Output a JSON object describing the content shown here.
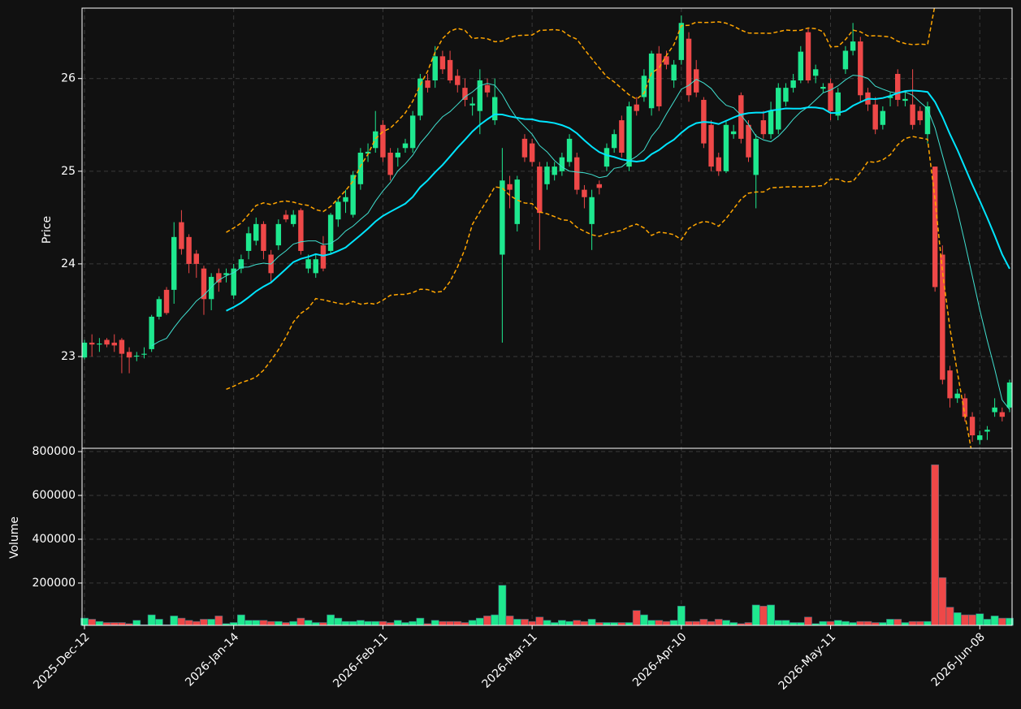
{
  "chart_data": {
    "type": "candlestick",
    "ylabel": "Price",
    "volume_ylabel": "Volume",
    "categories": [
      "2025-Dec-12",
      null,
      null,
      null,
      null,
      null,
      null,
      null,
      null,
      null,
      null,
      null,
      null,
      null,
      null,
      null,
      null,
      null,
      null,
      null,
      "2026-Jan-14",
      null,
      null,
      null,
      null,
      null,
      null,
      null,
      null,
      null,
      null,
      null,
      null,
      null,
      null,
      null,
      null,
      null,
      null,
      null,
      "2026-Feb-11",
      null,
      null,
      null,
      null,
      null,
      null,
      null,
      null,
      null,
      null,
      null,
      null,
      null,
      null,
      null,
      null,
      null,
      null,
      null,
      "2026-Mar-11",
      null,
      null,
      null,
      null,
      null,
      null,
      null,
      null,
      null,
      null,
      null,
      null,
      null,
      null,
      null,
      null,
      null,
      null,
      null,
      "2026-Apr-10",
      null,
      null,
      null,
      null,
      null,
      null,
      null,
      null,
      null,
      null,
      null,
      null,
      null,
      null,
      null,
      null,
      null,
      null,
      null,
      "2026-May-11",
      null,
      null,
      null,
      null,
      null,
      null,
      null,
      null,
      null,
      null,
      null,
      null,
      null,
      null,
      null,
      null,
      null,
      null,
      null,
      "2026-Jun-08",
      null,
      null,
      null,
      null
    ],
    "ohlc": [
      [
        22.99,
        23.18,
        22.97,
        23.15
      ],
      [
        23.15,
        23.24,
        23.0,
        23.13
      ],
      [
        23.13,
        23.2,
        23.05,
        23.14
      ],
      [
        23.18,
        23.2,
        23.1,
        23.13
      ],
      [
        23.15,
        23.24,
        23.05,
        23.12
      ],
      [
        23.18,
        23.2,
        22.82,
        23.03
      ],
      [
        23.05,
        23.1,
        22.82,
        22.99
      ],
      [
        23.0,
        23.05,
        22.95,
        23.01
      ],
      [
        23.02,
        23.1,
        22.98,
        23.03
      ],
      [
        23.08,
        23.45,
        23.05,
        23.43
      ],
      [
        23.43,
        23.65,
        23.4,
        23.62
      ],
      [
        23.72,
        23.75,
        23.45,
        23.47
      ],
      [
        23.72,
        24.45,
        23.57,
        24.29
      ],
      [
        24.45,
        24.58,
        24.1,
        24.16
      ],
      [
        24.29,
        24.32,
        23.9,
        24.0
      ],
      [
        24.11,
        24.15,
        23.85,
        24.0
      ],
      [
        23.95,
        23.98,
        23.45,
        23.62
      ],
      [
        23.62,
        23.9,
        23.5,
        23.86
      ],
      [
        23.9,
        23.95,
        23.7,
        23.8
      ],
      [
        23.88,
        23.95,
        23.8,
        23.9
      ],
      [
        23.66,
        24.0,
        23.62,
        23.95
      ],
      [
        23.95,
        24.1,
        23.9,
        24.05
      ],
      [
        24.14,
        24.4,
        24.05,
        24.33
      ],
      [
        24.25,
        24.5,
        24.2,
        24.43
      ],
      [
        24.43,
        24.46,
        24.05,
        24.14
      ],
      [
        24.1,
        24.15,
        23.8,
        23.9
      ],
      [
        24.2,
        24.48,
        24.15,
        24.43
      ],
      [
        24.53,
        24.58,
        24.45,
        24.48
      ],
      [
        24.43,
        24.58,
        24.4,
        24.53
      ],
      [
        24.58,
        24.6,
        24.1,
        24.14
      ],
      [
        23.95,
        24.1,
        23.9,
        24.05
      ],
      [
        23.9,
        24.1,
        23.85,
        24.05
      ],
      [
        24.2,
        24.3,
        23.92,
        23.95
      ],
      [
        24.14,
        24.55,
        24.1,
        24.53
      ],
      [
        24.48,
        24.7,
        24.4,
        24.67
      ],
      [
        24.67,
        24.8,
        24.55,
        24.72
      ],
      [
        24.53,
        25.0,
        24.5,
        24.96
      ],
      [
        24.86,
        25.25,
        24.8,
        25.2
      ],
      [
        25.19,
        25.3,
        25.1,
        25.21
      ],
      [
        25.25,
        25.65,
        25.2,
        25.43
      ],
      [
        25.5,
        25.55,
        25.1,
        25.15
      ],
      [
        25.2,
        25.25,
        24.9,
        24.96
      ],
      [
        25.15,
        25.25,
        25.05,
        25.2
      ],
      [
        25.25,
        25.35,
        25.2,
        25.3
      ],
      [
        25.25,
        25.65,
        25.2,
        25.6
      ],
      [
        25.6,
        26.05,
        25.55,
        26.0
      ],
      [
        25.98,
        26.05,
        25.85,
        25.9
      ],
      [
        25.98,
        26.35,
        25.9,
        26.24
      ],
      [
        26.24,
        26.3,
        26.05,
        26.1
      ],
      [
        26.2,
        26.3,
        25.95,
        25.98
      ],
      [
        26.03,
        26.1,
        25.85,
        25.93
      ],
      [
        25.9,
        26.0,
        25.7,
        25.77
      ],
      [
        25.71,
        25.8,
        25.6,
        25.73
      ],
      [
        25.65,
        26.1,
        25.4,
        25.98
      ],
      [
        25.93,
        26.0,
        25.8,
        25.85
      ],
      [
        25.55,
        26.0,
        25.5,
        25.8
      ],
      [
        24.1,
        25.25,
        23.15,
        24.9
      ],
      [
        24.86,
        24.95,
        24.6,
        24.8
      ],
      [
        24.43,
        24.95,
        24.35,
        24.91
      ],
      [
        25.35,
        25.4,
        25.1,
        25.15
      ],
      [
        25.3,
        25.35,
        25.05,
        25.1
      ],
      [
        25.05,
        25.1,
        24.15,
        24.55
      ],
      [
        24.86,
        25.1,
        24.8,
        25.05
      ],
      [
        24.96,
        25.1,
        24.9,
        25.05
      ],
      [
        25.0,
        25.2,
        24.95,
        25.15
      ],
      [
        25.1,
        25.4,
        25.05,
        25.35
      ],
      [
        25.15,
        25.2,
        24.75,
        24.8
      ],
      [
        24.8,
        24.85,
        24.6,
        24.72
      ],
      [
        24.43,
        24.8,
        24.15,
        24.72
      ],
      [
        24.86,
        24.9,
        24.75,
        24.82
      ],
      [
        25.05,
        25.3,
        25.0,
        25.25
      ],
      [
        25.25,
        25.45,
        25.2,
        25.4
      ],
      [
        25.55,
        25.6,
        25.15,
        25.2
      ],
      [
        25.05,
        25.75,
        25.0,
        25.7
      ],
      [
        25.72,
        25.8,
        25.6,
        25.65
      ],
      [
        25.8,
        26.1,
        25.75,
        26.03
      ],
      [
        25.68,
        26.3,
        25.6,
        26.27
      ],
      [
        26.27,
        26.35,
        25.65,
        25.7
      ],
      [
        26.24,
        26.3,
        26.1,
        26.15
      ],
      [
        25.98,
        26.2,
        25.9,
        26.15
      ],
      [
        26.2,
        26.68,
        26.15,
        26.6
      ],
      [
        26.43,
        26.5,
        25.75,
        25.82
      ],
      [
        26.1,
        26.2,
        25.8,
        25.85
      ],
      [
        25.77,
        25.8,
        25.25,
        25.3
      ],
      [
        25.5,
        25.55,
        25.0,
        25.05
      ],
      [
        25.15,
        25.2,
        24.95,
        25.0
      ],
      [
        25.0,
        25.55,
        24.98,
        25.5
      ],
      [
        25.4,
        25.5,
        25.35,
        25.43
      ],
      [
        25.82,
        25.85,
        25.3,
        25.35
      ],
      [
        25.5,
        25.55,
        25.1,
        25.15
      ],
      [
        24.96,
        25.4,
        24.6,
        25.35
      ],
      [
        25.55,
        25.65,
        25.35,
        25.4
      ],
      [
        25.4,
        25.75,
        25.35,
        25.65
      ],
      [
        25.45,
        25.95,
        25.4,
        25.9
      ],
      [
        25.75,
        25.95,
        25.7,
        25.9
      ],
      [
        25.9,
        26.05,
        25.85,
        25.98
      ],
      [
        25.98,
        26.35,
        25.95,
        26.29
      ],
      [
        26.5,
        26.55,
        25.95,
        25.98
      ],
      [
        26.03,
        26.15,
        25.95,
        26.1
      ],
      [
        25.89,
        25.95,
        25.85,
        25.91
      ],
      [
        25.95,
        26.0,
        25.55,
        25.65
      ],
      [
        25.6,
        25.9,
        25.55,
        25.85
      ],
      [
        26.1,
        26.35,
        26.05,
        26.3
      ],
      [
        26.3,
        26.6,
        26.25,
        26.4
      ],
      [
        26.4,
        26.45,
        25.75,
        25.82
      ],
      [
        25.85,
        25.9,
        25.65,
        25.72
      ],
      [
        25.72,
        25.8,
        25.4,
        25.45
      ],
      [
        25.5,
        25.7,
        25.45,
        25.65
      ],
      [
        25.79,
        25.85,
        25.7,
        25.81
      ],
      [
        26.05,
        26.1,
        25.7,
        25.77
      ],
      [
        25.76,
        25.85,
        25.7,
        25.78
      ],
      [
        25.72,
        26.1,
        25.45,
        25.5
      ],
      [
        25.65,
        25.7,
        25.5,
        25.55
      ],
      [
        25.4,
        25.75,
        25.3,
        25.7
      ],
      [
        25.05,
        25.05,
        23.7,
        23.75
      ],
      [
        24.1,
        24.2,
        22.7,
        22.75
      ],
      [
        22.85,
        22.9,
        22.45,
        22.55
      ],
      [
        22.55,
        22.65,
        22.5,
        22.6
      ],
      [
        22.55,
        22.6,
        22.3,
        22.35
      ],
      [
        22.35,
        22.4,
        22.08,
        22.15
      ],
      [
        22.1,
        22.2,
        22.05,
        22.15
      ],
      [
        22.19,
        22.25,
        22.1,
        22.21
      ],
      [
        22.4,
        22.55,
        22.35,
        22.45
      ],
      [
        22.4,
        22.45,
        22.3,
        22.35
      ],
      [
        22.45,
        22.75,
        22.4,
        22.72
      ]
    ],
    "volume": [
      40000,
      35000,
      25000,
      20000,
      20000,
      20000,
      15000,
      30000,
      10000,
      55000,
      35000,
      10000,
      50000,
      40000,
      30000,
      25000,
      35000,
      35000,
      50000,
      15000,
      20000,
      55000,
      30000,
      30000,
      30000,
      25000,
      25000,
      20000,
      25000,
      40000,
      30000,
      20000,
      20000,
      55000,
      40000,
      25000,
      25000,
      30000,
      25000,
      25000,
      25000,
      20000,
      30000,
      20000,
      25000,
      40000,
      15000,
      30000,
      25000,
      25000,
      25000,
      20000,
      30000,
      40000,
      50000,
      55000,
      190000,
      50000,
      35000,
      35000,
      25000,
      45000,
      30000,
      20000,
      30000,
      25000,
      30000,
      25000,
      35000,
      20000,
      20000,
      20000,
      20000,
      20000,
      75000,
      55000,
      30000,
      30000,
      25000,
      30000,
      95000,
      25000,
      25000,
      35000,
      25000,
      35000,
      30000,
      20000,
      15000,
      20000,
      100000,
      95000,
      100000,
      30000,
      30000,
      20000,
      20000,
      45000,
      15000,
      25000,
      25000,
      30000,
      25000,
      20000,
      25000,
      25000,
      20000,
      20000,
      35000,
      35000,
      20000,
      25000,
      25000,
      25000,
      740000,
      225000,
      90000,
      65000,
      55000,
      55000,
      60000,
      35000,
      50000,
      40000,
      40000
    ],
    "ylim": [
      22.01,
      26.76
    ],
    "yticks": [
      23,
      24,
      25,
      26
    ],
    "volume_ylim": [
      7000,
      815000
    ],
    "volume_yticks": [
      200000,
      400000,
      600000,
      800000
    ],
    "up_color": "#1ee88f",
    "down_color": "#ee4848",
    "mav": [
      10,
      20
    ],
    "mav_colors": [
      "#40e0d0",
      "#00e5ff"
    ],
    "mav_widths": [
      1,
      2
    ],
    "bollinger": {
      "window": 20,
      "std": 2,
      "color": "#ffa500"
    },
    "grid": true
  }
}
